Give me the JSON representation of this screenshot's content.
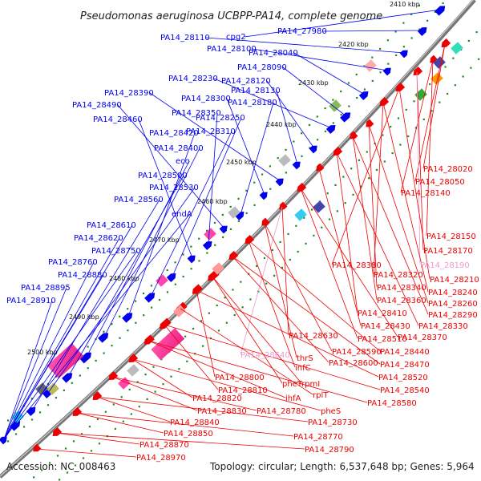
{
  "title": "Pseudomonas aeruginosa UCBPP-PA14, complete genome",
  "footer": {
    "accession": "Accession: NC_008463",
    "summary": "Topology: circular; Length: 6,537,648 bp; Genes: 5,964"
  },
  "colors": {
    "forward": "#0000ee",
    "reverse": "#ee0000",
    "pseudo": "#ee99cc",
    "backbone": "#777777",
    "tick": "#228822"
  },
  "scale_marks": [
    "2410 kbp",
    "2420 kbp",
    "2430 kbp",
    "2440 kbp",
    "2450 kbp",
    "2460 kbp",
    "2470 kbp",
    "2480 kbp",
    "2490 kbp",
    "2500 kbp"
  ],
  "forward_labels": [
    "cpg2",
    "PA14_27980",
    "PA14_28110",
    "PA14_28100",
    "PA14_28040",
    "PA14_28090",
    "PA14_28230",
    "PA14_28120",
    "PA14_28130",
    "PA14_28390",
    "PA14_28300",
    "PA14_28180",
    "PA14_28490",
    "PA14_28350",
    "PA14_28460",
    "PA14_28250",
    "PA14_28310",
    "PA14_28420",
    "PA14_28400",
    "eco",
    "PA14_28500",
    "PA14_28530",
    "PA14_28560",
    "endA",
    "PA14_28610",
    "PA14_28620",
    "PA14_28750",
    "PA14_28760",
    "PA14_28880",
    "PA14_28895",
    "PA14_28910"
  ],
  "reverse_labels": [
    "PA14_28020",
    "PA14_28050",
    "PA14_28140",
    "PA14_28150",
    "PA14_28170",
    "PA14_28190",
    "PA14_28210",
    "PA14_28380",
    "PA14_28320",
    "PA14_28240",
    "PA14_28340",
    "PA14_28260",
    "PA14_28360",
    "PA14_28290",
    "PA14_28410",
    "PA14_28330",
    "PA14_28430",
    "PA14_28370",
    "PA14_28510",
    "PA14_28630",
    "PA14_28640",
    "thrS",
    "PA14_28590",
    "PA14_28440",
    "infC",
    "PA14_28600",
    "PA14_28470",
    "pheT",
    "rpmI",
    "PA14_28520",
    "PA14_28800",
    "rplT",
    "PA14_28540",
    "PA14_28810",
    "ihfA",
    "PA14_28580",
    "PA14_28820",
    "pheS",
    "PA14_28830",
    "PA14_28780",
    "PA14_28730",
    "PA14_28840",
    "PA14_28850",
    "PA14_28770",
    "PA14_28790",
    "PA14_28870",
    "PA14_28970"
  ]
}
